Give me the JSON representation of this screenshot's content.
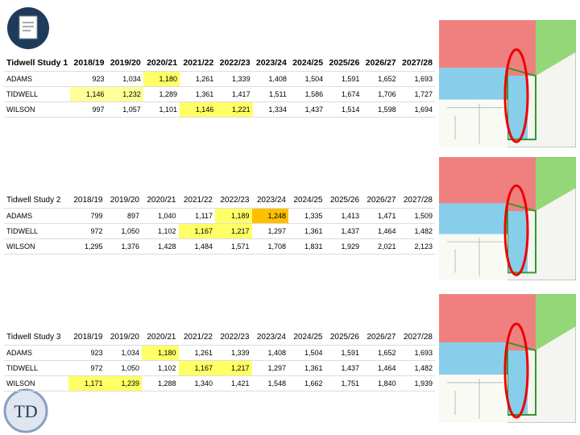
{
  "tables": [
    {
      "title": "Tidwell Study 1",
      "headers": [
        "2018/19",
        "2019/20",
        "2020/21",
        "2021/22",
        "2022/23",
        "2023/24",
        "2024/25",
        "2025/26",
        "2026/27",
        "2027/28"
      ],
      "rows": [
        {
          "name": "ADAMS",
          "values": [
            "923",
            "1,034",
            "1,180",
            "1,261",
            "1,339",
            "1,408",
            "1,504",
            "1,591",
            "1,652",
            "1,693"
          ]
        },
        {
          "name": "TIDWELL",
          "values": [
            "1,146",
            "1,232",
            "1,289",
            "1,361",
            "1,417",
            "1,511",
            "1,586",
            "1,674",
            "1,706",
            "1,727"
          ]
        },
        {
          "name": "WILSON",
          "values": [
            "997",
            "1,057",
            "1,101",
            "1,146",
            "1,221",
            "1,334",
            "1,437",
            "1,514",
            "1,598",
            "1,694"
          ]
        }
      ],
      "highlights": [
        {
          "row": 0,
          "col": 2,
          "color": "#ffff66"
        },
        {
          "row": 1,
          "col": 0,
          "color": "#ffff99"
        },
        {
          "row": 1,
          "col": 1,
          "color": "#ffff99"
        },
        {
          "row": 2,
          "col": 3,
          "color": "#ffff66"
        },
        {
          "row": 2,
          "col": 4,
          "color": "#ffff66"
        }
      ]
    },
    {
      "title": "Tidwell Study 2",
      "headers": [
        "2018/19",
        "2019/20",
        "2020/21",
        "2021/22",
        "2022/23",
        "2023/24",
        "2024/25",
        "2025/26",
        "2026/27",
        "2027/28"
      ],
      "rows": [
        {
          "name": "ADAMS",
          "values": [
            "799",
            "897",
            "1,040",
            "1,117",
            "1,189",
            "1,248",
            "1,335",
            "1,413",
            "1,471",
            "1,509"
          ]
        },
        {
          "name": "TIDWELL",
          "values": [
            "972",
            "1,050",
            "1,102",
            "1,167",
            "1,217",
            "1,297",
            "1,361",
            "1,437",
            "1,464",
            "1,482"
          ]
        },
        {
          "name": "WILSON",
          "values": [
            "1,295",
            "1,376",
            "1,428",
            "1,484",
            "1,571",
            "1,708",
            "1,831",
            "1,929",
            "2,021",
            "2,123"
          ]
        }
      ],
      "highlights": [
        {
          "row": 0,
          "col": 4,
          "color": "#ffff66"
        },
        {
          "row": 0,
          "col": 5,
          "color": "#ffc000"
        },
        {
          "row": 1,
          "col": 3,
          "color": "#ffff66"
        },
        {
          "row": 1,
          "col": 4,
          "color": "#ffff66"
        }
      ]
    },
    {
      "title": "Tidwell Study 3",
      "headers": [
        "2018/19",
        "2019/20",
        "2020/21",
        "2021/22",
        "2022/23",
        "2023/24",
        "2024/25",
        "2025/26",
        "2026/27",
        "2027/28"
      ],
      "rows": [
        {
          "name": "ADAMS",
          "values": [
            "923",
            "1,034",
            "1,180",
            "1,261",
            "1,339",
            "1,408",
            "1,504",
            "1,591",
            "1,652",
            "1,693"
          ]
        },
        {
          "name": "TIDWELL",
          "values": [
            "972",
            "1,050",
            "1,102",
            "1,167",
            "1,217",
            "1,297",
            "1,361",
            "1,437",
            "1,464",
            "1,482"
          ]
        },
        {
          "name": "WILSON",
          "values": [
            "1,171",
            "1,239",
            "1,288",
            "1,340",
            "1,421",
            "1,548",
            "1,662",
            "1,751",
            "1,840",
            "1,939"
          ]
        }
      ],
      "highlights": [
        {
          "row": 0,
          "col": 2,
          "color": "#ffff66"
        },
        {
          "row": 1,
          "col": 3,
          "color": "#ffff66"
        },
        {
          "row": 1,
          "col": 4,
          "color": "#ffff66"
        },
        {
          "row": 2,
          "col": 0,
          "color": "#ffff66"
        },
        {
          "row": 2,
          "col": 1,
          "color": "#ffff66"
        }
      ]
    }
  ]
}
